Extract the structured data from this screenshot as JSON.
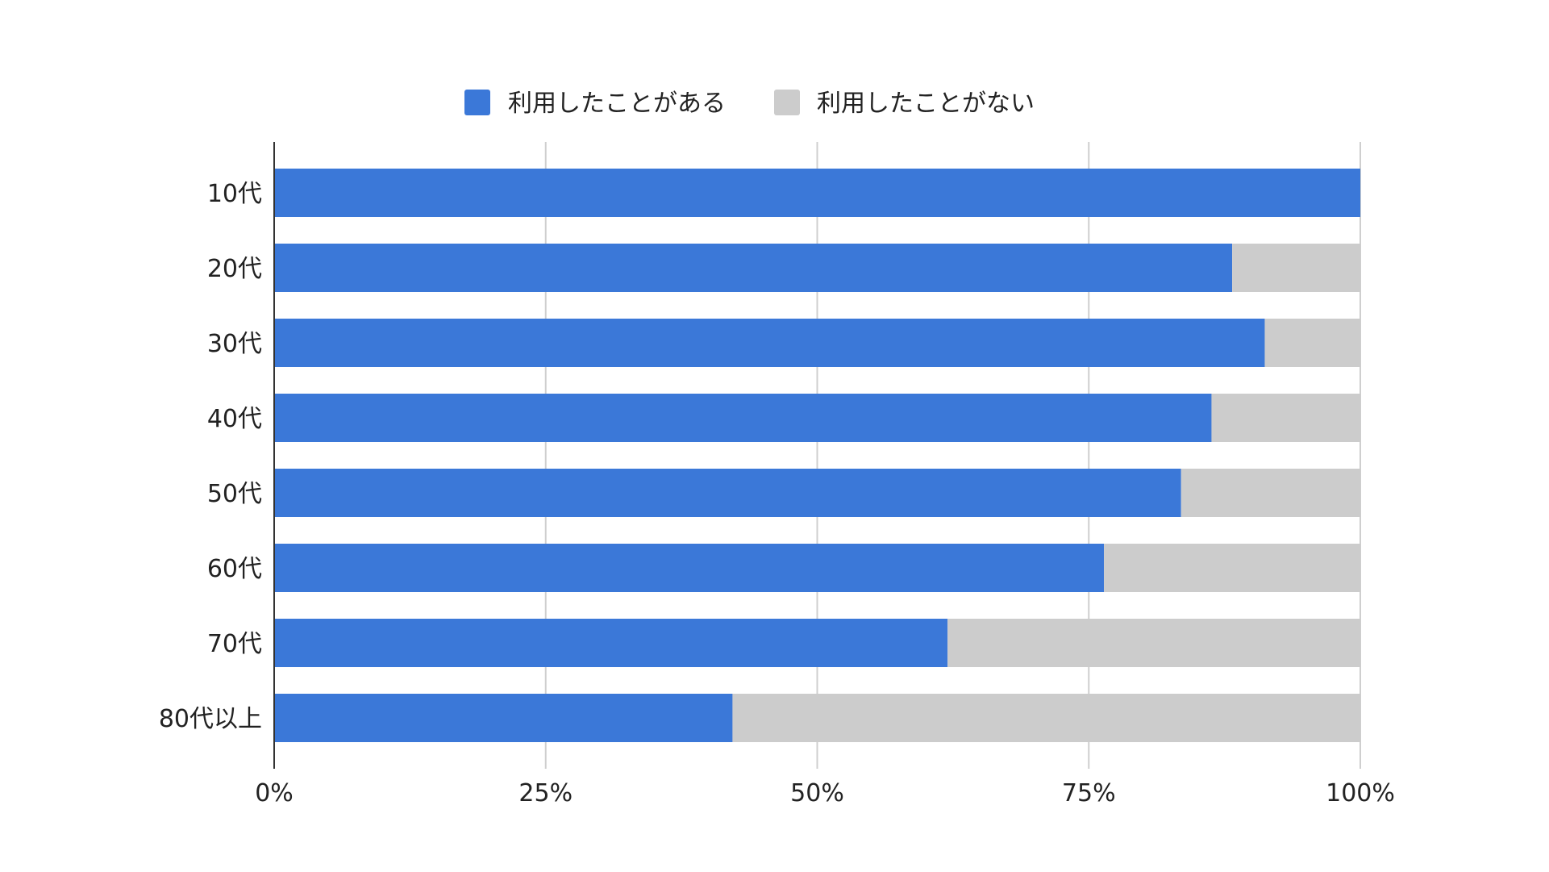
{
  "chart_data": {
    "type": "bar",
    "orientation": "horizontal",
    "stacked": "percent",
    "categories": [
      "10代",
      "20代",
      "30代",
      "40代",
      "50代",
      "60代",
      "70代",
      "80代以上"
    ],
    "series": [
      {
        "name": "利用したことがある",
        "color": "#3b78d8",
        "values": [
          100,
          88.2,
          91.2,
          86.3,
          83.5,
          76.4,
          62.0,
          42.2
        ]
      },
      {
        "name": "利用したことがない",
        "color": "#cccccc",
        "values": [
          0,
          11.8,
          8.8,
          13.7,
          16.5,
          23.6,
          38.0,
          57.8
        ]
      }
    ],
    "x_ticks": [
      "0%",
      "25%",
      "50%",
      "75%",
      "100%"
    ],
    "xlim": [
      0,
      100
    ],
    "grid": true,
    "legend_position": "top-center",
    "title": "",
    "xlabel": "",
    "ylabel": ""
  }
}
